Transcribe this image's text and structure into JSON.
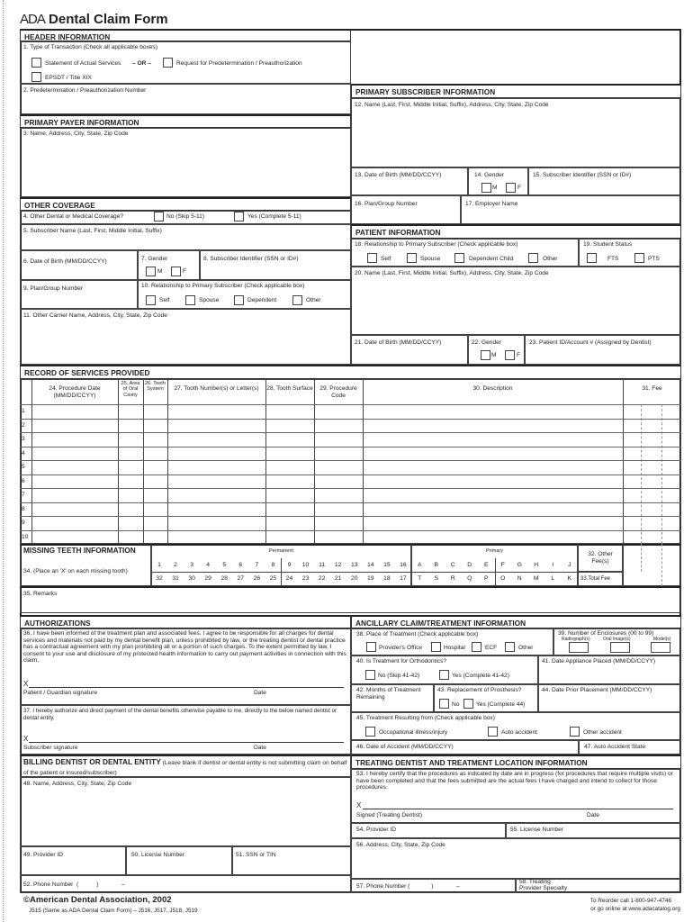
{
  "title": {
    "logo": "ADA",
    "text": "Dental Claim Form"
  },
  "header": {
    "bar": "HEADER INFORMATION",
    "item1": "1. Type of Transaction (Check all applicable boxes)",
    "actual": "Statement of Actual Services",
    "or": "– OR –",
    "predet": "Request for Predetermination / Preauthorization",
    "epsdt": "EPSDT / Title XIX",
    "item2": "2. Predetermination / Preauthorization Number"
  },
  "payer": {
    "bar": "PRIMARY PAYER INFORMATION",
    "item3": "3. Name, Address, City, State, Zip Code"
  },
  "other": {
    "bar": "OTHER COVERAGE",
    "item4": "4. Other Dental or Medical Coverage?",
    "no": "No  (Skip 5-11)",
    "yes": "Yes (Complete 5-11)",
    "item5": "5. Subscriber Name (Last, First, Middle Initial, Suffix)",
    "item6": "6. Date of Birth (MM/DD/CCYY)",
    "item7": "7. Gender",
    "m": "M",
    "f": "F",
    "item8": "8. Subscriber Identifier (SSN or ID#)",
    "item9": "9. Plan/Group Number",
    "item10": "10. Relationship to Primary Subscriber (Check applicable box)",
    "self": "Self",
    "spouse": "Spouse",
    "dependent": "Dependent",
    "other": "Other",
    "item11": "11. Other Carrier Name, Address, City, State, Zip Code"
  },
  "subscriber": {
    "bar": "PRIMARY SUBSCRIBER INFORMATION",
    "item12": "12. Name (Last, First, Middle Initial, Suffix), Address, City, State, Zip Code",
    "item13": "13. Date of Birth (MM/DD/CCYY)",
    "item14": "14. Gender",
    "m": "M",
    "f": "F",
    "item15": "15. Subscriber Identifier (SSN or ID#)",
    "item16": "16. Plan/Group Number",
    "item17": "17. Employer Name"
  },
  "patient": {
    "bar": "PATIENT INFORMATION",
    "item18": "18. Relationship to Primary Subscriber (Check applicable box)",
    "self": "Self",
    "spouse": "Spouse",
    "child": "Dependent Child",
    "other": "Other",
    "item19": "19. Student Status",
    "fts": "FTS",
    "pts": "PTS",
    "item20": "20. Name (Last, First, Middle Initial, Suffix), Address, City, State, Zip Code",
    "item21": "21. Date of Birth (MM/DD/CCYY)",
    "item22": "22. Gender",
    "m": "M",
    "f": "F",
    "item23": "23. Patient ID/Account # (Assigned by Dentist)"
  },
  "services": {
    "bar": "RECORD OF SERVICES PROVIDED",
    "cols": [
      "24. Procedure Date (MM/DD/CCYY)",
      "25. Area of Oral Cavity",
      "26. Tooth System",
      "27. Tooth Number(s) or Letter(s)",
      "28. Tooth Surface",
      "29. Procedure Code",
      "30. Description",
      "31. Fee"
    ],
    "rows": [
      "1",
      "2",
      "3",
      "4",
      "5",
      "6",
      "7",
      "8",
      "9",
      "10"
    ]
  },
  "missing": {
    "title": "MISSING TEETH INFORMATION",
    "instruction": "34. (Place an 'X' on each missing tooth)",
    "permanent": "Permanent",
    "primary": "Primary",
    "perm_top": [
      "1",
      "2",
      "3",
      "4",
      "5",
      "6",
      "7",
      "8",
      "9",
      "10",
      "11",
      "12",
      "13",
      "14",
      "15",
      "16"
    ],
    "perm_bottom": [
      "32",
      "31",
      "30",
      "29",
      "28",
      "27",
      "26",
      "25",
      "24",
      "23",
      "22",
      "21",
      "20",
      "19",
      "18",
      "17"
    ],
    "prim_top": [
      "A",
      "B",
      "C",
      "D",
      "E",
      "F",
      "G",
      "H",
      "I",
      "J"
    ],
    "prim_bottom": [
      "T",
      "S",
      "R",
      "Q",
      "P",
      "O",
      "N",
      "M",
      "L",
      "K"
    ],
    "other_fee": "32. Other Fee(s)",
    "total_fee": "33.Total Fee"
  },
  "remarks": "35. Remarks",
  "auth": {
    "bar": "AUTHORIZATIONS",
    "item36": "36. I have been informed of the treatment plan and associated fees. I agree to be responsible for all charges for dental services and materials not paid by my dental benefit plan, unless prohibited by law, or the treating dentist or dental practice has a contractual agreement with my plan prohibiting all or a portion of such charges. To the extent permitted by law, I consent to your use and disclosure of my protected health information to carry out payment activities in connection with this claim.",
    "x": "X",
    "patient_sig": "Patient / Guardian signature",
    "date": "Date",
    "item37": "37. I hereby authorize and direct payment of the dental benefits otherwise payable to me, directly to the below named dentist or dental entity.",
    "subscriber_sig": "Subscriber signature"
  },
  "billing": {
    "bar": "BILLING DENTIST OR DENTAL ENTITY",
    "note": "(Leave blank if dentist or dental entity is not submitting claim on behalf of the patient or insured/subscriber)",
    "item48": "48. Name, Address, City, State, Zip Code",
    "item49": "49. Provider ID",
    "item50": "50. License Number",
    "item51": "51. SSN or TIN",
    "item52": "52. Phone Number  (           )              –"
  },
  "ancillary": {
    "bar": "ANCILLARY CLAIM/TREATMENT INFORMATION",
    "item38": "38. Place of Treatment (Check applicable box)",
    "office": "Provider's Office",
    "hospital": "Hospital",
    "ecf": "ECF",
    "other": "Other",
    "item39": "39. Number of Enclosures (00 to 99)",
    "radiographs": "Radiograph(s)",
    "oral_images": "Oral Image(s)",
    "models": "Model(s)",
    "item40": "40. Is Treatment for Orthodontics?",
    "no40": "No  (Skip 41-42)",
    "yes40": "Yes  (Complete 41-42)",
    "item41": "41. Date Appliance Placed (MM/DD/CCYY)",
    "item42": "42. Months of Treatment Remaining",
    "item43": "43. Replacement of Prosthesis?",
    "no43": "No",
    "yes43": "Yes (Complete 44)",
    "item44": "44. Date Prior Placement (MM/DD/CCYY)",
    "item45": "45. Treatment Resulting from (Check applicable box)",
    "occupational": "Occupational illness/injury",
    "auto": "Auto accident",
    "other_acc": "Other accident",
    "item46": "46. Date of Accident (MM/DD/CCYY)",
    "item47": "47. Auto Accident State"
  },
  "treating": {
    "bar": "TREATING DENTIST AND TREATMENT LOCATION INFORMATION",
    "item53": "53. I hereby certify that the procedures as indicated by date are in progress (for procedures that require multiple visits) or have been completed and that the fees submitted are the actual fees I have charged and intend to collect for those procedures.",
    "x": "X",
    "signed": "Signed (Treating Dentist)",
    "date": "Date",
    "item54": "54. Provider ID",
    "item55": "55. License Number",
    "item56": "56. Address, City, State, Zip Code",
    "item57": "57. Phone Number (             )              –",
    "item58": "58. Treating Provider Specialty"
  },
  "footer": {
    "copyright": "©American Dental Association, 2002",
    "codes": "J515 (Same as ADA Dental Claim Form) – J516, J517, J518, J519",
    "reorder": "To Reorder call 1-800-947-4746",
    "online": "or go online at www.adacatalog.org"
  }
}
